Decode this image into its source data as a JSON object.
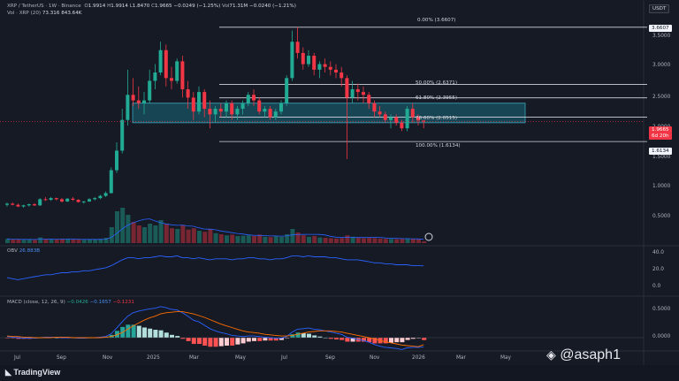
{
  "header": {
    "symbol": "XRP / TetherUS · 1W · Binance",
    "o_label": "O",
    "o_value": "1.9914",
    "h_label": "H",
    "h_value": "1.9914",
    "l_label": "L",
    "l_value": "1.8470",
    "c_label": "C",
    "c_value": "1.9665",
    "change": "−0.0249 (−1.25%)",
    "vol_label": "Vol",
    "vol_value": "71.31M",
    "vol_change": "−0.0240 (−1.21%)",
    "vol_row_label": "Vol · XRP (20)",
    "vol_row_v1": "73.316",
    "vol_row_v2": "843.64K"
  },
  "currency_badge": "USDT",
  "price_scale": [
    "3.5000",
    "3.0000",
    "2.5000",
    "2.0000",
    "1.5000",
    "1.0000",
    "0.5000"
  ],
  "current_price": "1.9665",
  "countdown": "6d 20h",
  "fib_low_badge": "1.6134",
  "fib_top_badge": "3.6607",
  "fib_levels": [
    {
      "label": "0.00% (3.6607)"
    },
    {
      "label": "50.00% (2.6371)"
    },
    {
      "label": "61.80% (2.3955)"
    },
    {
      "label": "78.60% (2.0515)"
    },
    {
      "label": "100.00% (1.6134)"
    }
  ],
  "obv": {
    "label": "OBV",
    "value": "26.883B",
    "scale": [
      "40.0",
      "20.0",
      "0.0"
    ]
  },
  "macd": {
    "label": "MACD (close, 12, 26, 9)",
    "v1": "−0.0426",
    "v2": "−0.1657",
    "v3": "−0.1231",
    "scale": [
      "0.5000",
      "0.0000"
    ]
  },
  "time_axis": [
    "Jul",
    "Sep",
    "Nov",
    "2025",
    "Mar",
    "May",
    "Jul",
    "Sep",
    "Nov",
    "2026",
    "Mar",
    "May"
  ],
  "brand": "TradingView",
  "watermark": "@asaph1",
  "chart_data": {
    "type": "candlestick",
    "ylim": [
      0,
      3.8
    ],
    "fib": {
      "high": 3.6607,
      "low": 1.6134,
      "levels": [
        0.0,
        0.5,
        0.618,
        0.786,
        1.0
      ]
    },
    "zone": [
      1.95,
      2.3
    ],
    "ohlc": [
      [
        0.48,
        0.52,
        0.45,
        0.5
      ],
      [
        0.5,
        0.52,
        0.47,
        0.48
      ],
      [
        0.48,
        0.5,
        0.44,
        0.45
      ],
      [
        0.45,
        0.48,
        0.43,
        0.47
      ],
      [
        0.47,
        0.5,
        0.45,
        0.49
      ],
      [
        0.49,
        0.51,
        0.46,
        0.47
      ],
      [
        0.47,
        0.6,
        0.46,
        0.58
      ],
      [
        0.58,
        0.62,
        0.55,
        0.57
      ],
      [
        0.57,
        0.62,
        0.55,
        0.6
      ],
      [
        0.6,
        0.61,
        0.56,
        0.58
      ],
      [
        0.58,
        0.6,
        0.52,
        0.54
      ],
      [
        0.54,
        0.6,
        0.53,
        0.59
      ],
      [
        0.59,
        0.62,
        0.55,
        0.57
      ],
      [
        0.57,
        0.58,
        0.52,
        0.53
      ],
      [
        0.53,
        0.55,
        0.5,
        0.54
      ],
      [
        0.54,
        0.6,
        0.53,
        0.58
      ],
      [
        0.58,
        0.62,
        0.56,
        0.6
      ],
      [
        0.6,
        0.66,
        0.58,
        0.64
      ],
      [
        0.64,
        0.72,
        0.62,
        0.69
      ],
      [
        0.69,
        1.15,
        0.68,
        1.1
      ],
      [
        1.1,
        1.6,
        1.05,
        1.45
      ],
      [
        1.45,
        2.2,
        1.4,
        2.0
      ],
      [
        2.0,
        2.9,
        1.9,
        2.45
      ],
      [
        2.45,
        2.75,
        2.25,
        2.35
      ],
      [
        2.35,
        2.6,
        2.2,
        2.3
      ],
      [
        2.3,
        2.5,
        2.1,
        2.35
      ],
      [
        2.35,
        2.9,
        2.3,
        2.7
      ],
      [
        2.7,
        3.0,
        2.55,
        2.85
      ],
      [
        2.85,
        3.4,
        2.8,
        3.25
      ],
      [
        3.25,
        3.35,
        2.6,
        2.75
      ],
      [
        2.75,
        2.95,
        2.55,
        2.7
      ],
      [
        2.7,
        3.1,
        2.65,
        3.05
      ],
      [
        3.05,
        3.15,
        2.4,
        2.55
      ],
      [
        2.55,
        2.7,
        2.2,
        2.4
      ],
      [
        2.4,
        2.5,
        2.0,
        2.15
      ],
      [
        2.15,
        2.6,
        2.1,
        2.5
      ],
      [
        2.5,
        2.55,
        2.05,
        2.2
      ],
      [
        2.2,
        2.35,
        1.85,
        2.1
      ],
      [
        2.1,
        2.25,
        1.95,
        2.2
      ],
      [
        2.2,
        2.3,
        2.05,
        2.15
      ],
      [
        2.15,
        2.35,
        2.05,
        2.3
      ],
      [
        2.3,
        2.35,
        2.0,
        2.1
      ],
      [
        2.1,
        2.25,
        2.0,
        2.2
      ],
      [
        2.2,
        2.35,
        2.1,
        2.3
      ],
      [
        2.3,
        2.5,
        2.25,
        2.45
      ],
      [
        2.45,
        2.55,
        2.25,
        2.35
      ],
      [
        2.35,
        2.4,
        2.1,
        2.15
      ],
      [
        2.15,
        2.25,
        2.05,
        2.2
      ],
      [
        2.2,
        2.25,
        2.0,
        2.05
      ],
      [
        2.05,
        2.2,
        2.0,
        2.15
      ],
      [
        2.15,
        2.35,
        2.1,
        2.3
      ],
      [
        2.3,
        2.8,
        2.25,
        2.75
      ],
      [
        2.75,
        3.6,
        2.7,
        3.4
      ],
      [
        3.4,
        3.66,
        3.1,
        3.2
      ],
      [
        3.2,
        3.3,
        2.9,
        3.0
      ],
      [
        3.0,
        3.25,
        2.95,
        3.15
      ],
      [
        3.15,
        3.2,
        2.8,
        2.9
      ],
      [
        2.9,
        3.05,
        2.75,
        3.0
      ],
      [
        3.0,
        3.1,
        2.85,
        2.95
      ],
      [
        2.95,
        3.05,
        2.8,
        2.9
      ],
      [
        2.9,
        3.0,
        2.75,
        2.85
      ],
      [
        2.85,
        2.95,
        2.6,
        2.75
      ],
      [
        2.75,
        2.8,
        1.3,
        2.4
      ],
      [
        2.4,
        2.7,
        2.3,
        2.55
      ],
      [
        2.55,
        2.65,
        2.35,
        2.5
      ],
      [
        2.5,
        2.6,
        2.3,
        2.45
      ],
      [
        2.45,
        2.5,
        2.2,
        2.3
      ],
      [
        2.3,
        2.35,
        2.05,
        2.15
      ],
      [
        2.15,
        2.25,
        2.05,
        2.1
      ],
      [
        2.1,
        2.15,
        1.95,
        2.0
      ],
      [
        2.0,
        2.1,
        1.85,
        2.05
      ],
      [
        2.05,
        2.1,
        1.9,
        1.95
      ],
      [
        1.95,
        2.0,
        1.8,
        1.85
      ],
      [
        1.85,
        2.25,
        1.8,
        2.2
      ],
      [
        2.2,
        2.3,
        1.95,
        2.05
      ],
      [
        2.05,
        2.1,
        1.9,
        1.99
      ],
      [
        1.99,
        1.99,
        1.85,
        1.97
      ]
    ],
    "volume": [
      0.12,
      0.1,
      0.11,
      0.09,
      0.1,
      0.09,
      0.16,
      0.12,
      0.11,
      0.1,
      0.12,
      0.11,
      0.1,
      0.11,
      0.09,
      0.1,
      0.1,
      0.12,
      0.15,
      0.45,
      0.9,
      1.0,
      0.8,
      0.6,
      0.5,
      0.45,
      0.55,
      0.5,
      0.65,
      0.55,
      0.42,
      0.4,
      0.5,
      0.38,
      0.42,
      0.35,
      0.32,
      0.4,
      0.28,
      0.25,
      0.22,
      0.24,
      0.2,
      0.21,
      0.22,
      0.2,
      0.24,
      0.18,
      0.17,
      0.2,
      0.18,
      0.25,
      0.4,
      0.3,
      0.22,
      0.18,
      0.2,
      0.16,
      0.15,
      0.14,
      0.13,
      0.14,
      0.22,
      0.18,
      0.15,
      0.14,
      0.16,
      0.14,
      0.13,
      0.12,
      0.12,
      0.11,
      0.12,
      0.13,
      0.12,
      0.11,
      0.05
    ],
    "obv_series": [
      15,
      14,
      13,
      14,
      15,
      16,
      17,
      18,
      18,
      19,
      20,
      20,
      21,
      21,
      22,
      22,
      23,
      24,
      25,
      27,
      30,
      33,
      35,
      35,
      34,
      35,
      35,
      36,
      37,
      36,
      36,
      37,
      35,
      35,
      34,
      35,
      34,
      33,
      34,
      34,
      34,
      33,
      34,
      34,
      35,
      35,
      34,
      34,
      33,
      34,
      34,
      35,
      37,
      37,
      36,
      37,
      36,
      36,
      36,
      35,
      35,
      34,
      33,
      33,
      33,
      32,
      31,
      30,
      30,
      29,
      29,
      28,
      28,
      28,
      27,
      27,
      26.9
    ],
    "macd_series": [
      0.02,
      0.01,
      0.0,
      -0.01,
      -0.01,
      -0.01,
      0.0,
      0.01,
      0.01,
      0.01,
      0.0,
      0.0,
      0.0,
      -0.01,
      -0.01,
      0.0,
      0.0,
      0.01,
      0.02,
      0.07,
      0.17,
      0.28,
      0.38,
      0.44,
      0.47,
      0.49,
      0.51,
      0.52,
      0.55,
      0.53,
      0.5,
      0.49,
      0.44,
      0.38,
      0.31,
      0.28,
      0.22,
      0.16,
      0.12,
      0.09,
      0.07,
      0.04,
      0.03,
      0.02,
      0.03,
      0.03,
      0.02,
      0.01,
      0.0,
      -0.01,
      -0.01,
      0.02,
      0.1,
      0.15,
      0.16,
      0.17,
      0.15,
      0.14,
      0.12,
      0.1,
      0.08,
      0.06,
      0.01,
      -0.01,
      -0.03,
      -0.05,
      -0.08,
      -0.12,
      -0.15,
      -0.17,
      -0.18,
      -0.19,
      -0.21,
      -0.18,
      -0.17,
      -0.17,
      -0.165
    ],
    "signal_series": [
      0.03,
      0.02,
      0.02,
      0.01,
      0.01,
      0.0,
      0.0,
      0.0,
      0.0,
      0.01,
      0.01,
      0.01,
      0.0,
      0.0,
      0.0,
      0.0,
      0.0,
      0.0,
      0.01,
      0.02,
      0.05,
      0.09,
      0.15,
      0.21,
      0.26,
      0.31,
      0.35,
      0.38,
      0.42,
      0.44,
      0.45,
      0.46,
      0.46,
      0.44,
      0.42,
      0.39,
      0.36,
      0.32,
      0.28,
      0.24,
      0.21,
      0.18,
      0.15,
      0.12,
      0.1,
      0.09,
      0.08,
      0.06,
      0.05,
      0.04,
      0.03,
      0.03,
      0.04,
      0.06,
      0.08,
      0.1,
      0.11,
      0.12,
      0.12,
      0.12,
      0.11,
      0.1,
      0.08,
      0.06,
      0.04,
      0.02,
      0.0,
      -0.02,
      -0.05,
      -0.07,
      -0.09,
      -0.11,
      -0.13,
      -0.14,
      -0.15,
      -0.16,
      -0.123
    ]
  }
}
